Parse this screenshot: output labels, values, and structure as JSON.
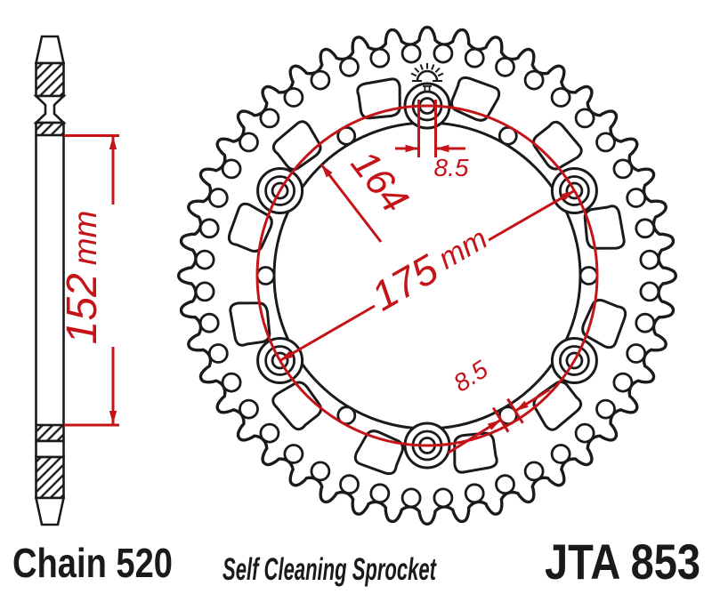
{
  "colors": {
    "outline": "#1a1a1a",
    "dimension": "#c41418",
    "background": "#ffffff"
  },
  "sprocket": {
    "tooth_count": 44,
    "bolt_hole_count": 6,
    "small_hole_count": 6,
    "cutout_count": 12
  },
  "diagram": {
    "width_dim": {
      "value": "152",
      "unit": "mm"
    },
    "inner_dim": "164",
    "bolt_circle_dim": {
      "value": "175",
      "unit": "mm"
    },
    "bolt_hole_dim": "8.5",
    "small_hole_dim": "8.5"
  },
  "footer": {
    "chain_label": "Chain 520",
    "description": "Self Cleaning Sprocket",
    "part_number": "JTA 853"
  }
}
